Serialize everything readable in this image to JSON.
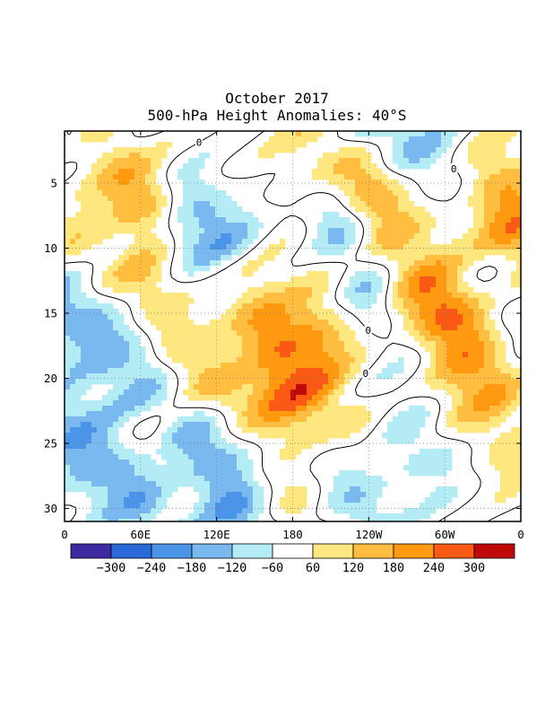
{
  "title": "October 2017",
  "subtitle": "500-hPa Height Anomalies: 40°S",
  "chart_data": {
    "type": "heatmap",
    "x_ticks": [
      {
        "lon": 0,
        "label": "0"
      },
      {
        "lon": 60,
        "label": "60E"
      },
      {
        "lon": 120,
        "label": "120E"
      },
      {
        "lon": 180,
        "label": "180"
      },
      {
        "lon": 240,
        "label": "120W"
      },
      {
        "lon": 300,
        "label": "60W"
      },
      {
        "lon": 360,
        "label": "0"
      }
    ],
    "y_ticks": [
      5,
      10,
      15,
      20,
      25,
      30
    ],
    "xlim": [
      0,
      360
    ],
    "ylim": [
      1,
      31
    ],
    "grid": true,
    "contour_label": "0",
    "colorbar": {
      "levels": [
        "-300",
        "-240",
        "-180",
        "-120",
        "-60",
        "60",
        "120",
        "180",
        "240",
        "300"
      ],
      "colors": [
        "#3d2aa0",
        "#2a6ad8",
        "#4a95e8",
        "#7ab8f0",
        "#b4ecf6",
        "#ffffff",
        "#ffe780",
        "#ffbe40",
        "#ff9a10",
        "#fa5a14",
        "#c00a0a"
      ]
    },
    "bands": [
      {
        "anom": 190,
        "day": 4.5,
        "lon": 42,
        "day2": 6.5,
        "lon2": 68,
        "width": 3.5
      },
      {
        "anom": 180,
        "day": 3.0,
        "lon": 205,
        "day2": 5.0,
        "lon2": 230,
        "width": 4
      },
      {
        "anom": 150,
        "day": 9.0,
        "lon": 250,
        "day2": 14.0,
        "lon2": 290,
        "width": 6
      },
      {
        "anom": 230,
        "day": 5.0,
        "lon": 335,
        "day2": 8.0,
        "lon2": 355,
        "width": 4
      },
      {
        "anom": 220,
        "day": 15.0,
        "lon": 135,
        "day2": 20.0,
        "lon2": 165,
        "width": 5
      },
      {
        "anom": 150,
        "day": 13.0,
        "lon": 63,
        "day2": 16.0,
        "lon2": 80,
        "width": 4
      },
      {
        "anom": 140,
        "day": 18.0,
        "lon": 205,
        "day2": 23.0,
        "lon2": 215,
        "width": 5
      },
      {
        "anom": 150,
        "day": 15.0,
        "lon": 300,
        "day2": 19.0,
        "lon2": 330,
        "width": 4
      },
      {
        "anom": 110,
        "day": 19.5,
        "lon": 100,
        "day2": 21.5,
        "lon2": 120,
        "width": 3
      },
      {
        "anom": 110,
        "day": 25.0,
        "lon": 70,
        "day2": 28.0,
        "lon2": 90,
        "width": 3
      },
      {
        "anom": 110,
        "day": 28.5,
        "lon": 165,
        "day2": 31.0,
        "lon2": 185,
        "width": 3
      },
      {
        "anom": 90,
        "day": 22.0,
        "lon": 320,
        "day2": 26.0,
        "lon2": 355,
        "width": 4
      },
      {
        "anom": 100,
        "day": 1.0,
        "lon": 10,
        "day2": 3.0,
        "lon2": 30,
        "width": 3
      },
      {
        "anom": 100,
        "day": 9.0,
        "lon": 0,
        "day2": 11.0,
        "lon2": 12,
        "width": 3
      },
      {
        "anom": -180,
        "day": 14.0,
        "lon": 0,
        "day2": 19.0,
        "lon2": 60,
        "width": 4
      },
      {
        "anom": -170,
        "day": 24.0,
        "lon": 0,
        "day2": 29.0,
        "lon2": 60,
        "width": 4
      },
      {
        "anom": -200,
        "day": 25.0,
        "lon": 105,
        "day2": 30.0,
        "lon2": 140,
        "width": 4
      },
      {
        "anom": -130,
        "day": 15.0,
        "lon": 100,
        "day2": 18.5,
        "lon2": 140,
        "width": 3
      },
      {
        "anom": -110,
        "day": 4.0,
        "lon": 200,
        "day2": 8.0,
        "lon2": 220,
        "width": 3
      },
      {
        "anom": -150,
        "day": 8.0,
        "lon": 215,
        "day2": 13.0,
        "lon2": 240,
        "width": 3
      },
      {
        "anom": -160,
        "day": 1.0,
        "lon": 250,
        "day2": 5.0,
        "lon2": 310,
        "width": 4
      },
      {
        "anom": -110,
        "day": 15.0,
        "lon": 245,
        "day2": 18.0,
        "lon2": 275,
        "width": 3
      },
      {
        "anom": -150,
        "day": 6.0,
        "lon": 95,
        "day2": 9.0,
        "lon2": 130,
        "width": 3
      },
      {
        "anom": -120,
        "day": 10.0,
        "lon": 95,
        "day2": 13.0,
        "lon2": 125,
        "width": 3
      },
      {
        "anom": -100,
        "day": 21.0,
        "lon": 240,
        "day2": 26.0,
        "lon2": 290,
        "width": 4
      },
      {
        "anom": -120,
        "day": 1.0,
        "lon": 0,
        "day2": 3.5,
        "lon2": 30,
        "width": 3
      },
      {
        "anom": -120,
        "day": 26.0,
        "lon": 210,
        "day2": 31.0,
        "lon2": 240,
        "width": 3
      },
      {
        "anom": -100,
        "day": 12.0,
        "lon": 325,
        "day2": 17.0,
        "lon2": 360,
        "width": 3
      }
    ]
  }
}
